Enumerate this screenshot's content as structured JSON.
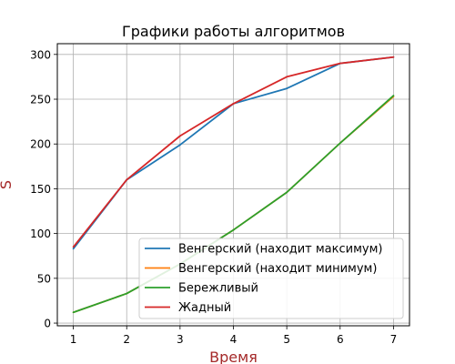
{
  "chart_data": {
    "type": "line",
    "title": "Графики работы алгоритмов",
    "xlabel": "Время",
    "ylabel": "S",
    "label_color": "#a52a2a",
    "x": [
      1,
      2,
      3,
      4,
      5,
      6,
      7
    ],
    "xlim": [
      0.7,
      7.3
    ],
    "ylim": [
      -3,
      312
    ],
    "xticks": [
      1,
      2,
      3,
      4,
      5,
      6,
      7
    ],
    "yticks": [
      0,
      50,
      100,
      150,
      200,
      250,
      300
    ],
    "grid": true,
    "legend_position": "lower-right",
    "series": [
      {
        "name": "Венгерский (находит максимум)",
        "color": "#1f77b4",
        "values": [
          83,
          160,
          199,
          245,
          262,
          290,
          297
        ]
      },
      {
        "name": "Венгерский (находит минимум)",
        "color": "#ff7f0e",
        "values": [
          12,
          33,
          66,
          104,
          146,
          201,
          253
        ]
      },
      {
        "name": "Бережливый",
        "color": "#2ca02c",
        "values": [
          12,
          33,
          66,
          104,
          146,
          201,
          254
        ]
      },
      {
        "name": "Жадный",
        "color": "#d62728",
        "values": [
          85,
          160,
          209,
          245,
          275,
          290,
          297
        ]
      }
    ]
  }
}
